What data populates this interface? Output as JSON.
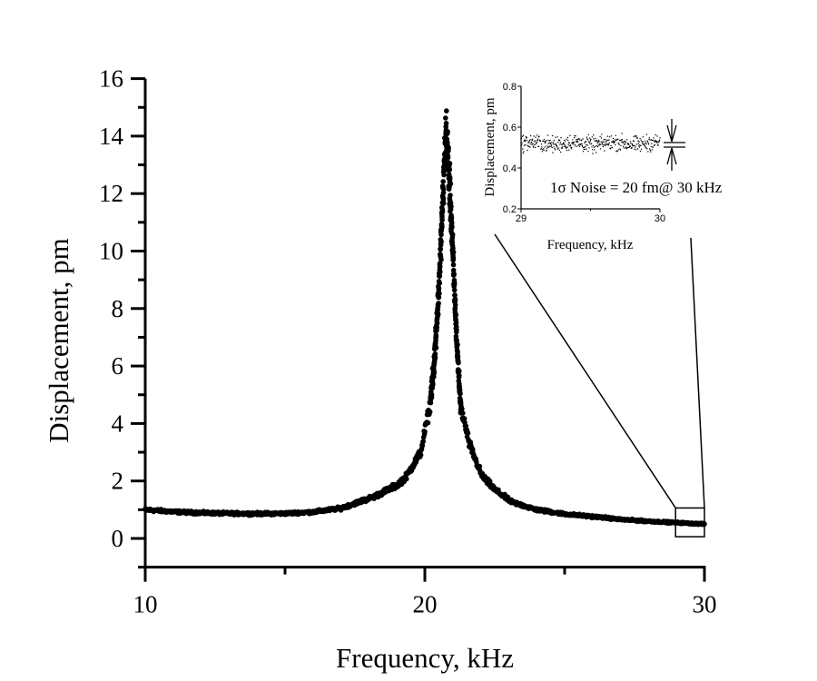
{
  "chart_data": {
    "type": "scatter",
    "title": "",
    "xlabel": "Frequency, kHz",
    "ylabel": "Displacement, pm",
    "xlim": [
      10,
      30
    ],
    "ylim": [
      -1,
      16
    ],
    "xticks": [
      "10",
      "20",
      "30"
    ],
    "yticks": [
      "0",
      "2",
      "4",
      "6",
      "8",
      "10",
      "12",
      "14",
      "16"
    ],
    "xtick_values": [
      10,
      20,
      30
    ],
    "ytick_values": [
      0,
      2,
      4,
      6,
      8,
      10,
      12,
      14,
      16
    ],
    "grid": false,
    "marker_color": "#000000",
    "series": [
      {
        "x": [
          10,
          11,
          12,
          13,
          14,
          15,
          16,
          17,
          18.2,
          19.0,
          19.33,
          19.85,
          20.18,
          20.34,
          20.5,
          20.63,
          20.72,
          20.76,
          20.85,
          20.95,
          21.06,
          21.15,
          21.28,
          21.6,
          22.03,
          22.5,
          23.1,
          24,
          25,
          26.36,
          27,
          28,
          29,
          30
        ],
        "y": [
          1.0,
          0.93,
          0.89,
          0.87,
          0.86,
          0.87,
          0.92,
          1.05,
          1.46,
          1.85,
          2.15,
          3.0,
          4.6,
          6.2,
          8.6,
          11.5,
          13.5,
          14.3,
          13.0,
          11.0,
          8.6,
          6.7,
          4.6,
          3.26,
          2.2,
          1.7,
          1.27,
          1.0,
          0.85,
          0.73,
          0.66,
          0.6,
          0.55,
          0.5
        ]
      }
    ],
    "zoom_region": {
      "x": [
        29,
        30
      ],
      "y": [
        0.2,
        0.8
      ]
    },
    "inset": {
      "type": "scatter",
      "xlabel": "Frequency, kHz",
      "ylabel": "Displacement, pm",
      "xlim": [
        29,
        30
      ],
      "ylim": [
        0.2,
        0.8
      ],
      "xticks": [
        "29",
        "30"
      ],
      "xtick_values": [
        29,
        30
      ],
      "yticks": [
        "0.2",
        "0.4",
        "0.6",
        "0.8"
      ],
      "ytick_values": [
        0.2,
        0.4,
        0.6,
        0.8
      ],
      "mean": 0.52,
      "sigma": 0.02,
      "annotation": "1σ Noise = 20 fm@ 30 kHz"
    }
  }
}
